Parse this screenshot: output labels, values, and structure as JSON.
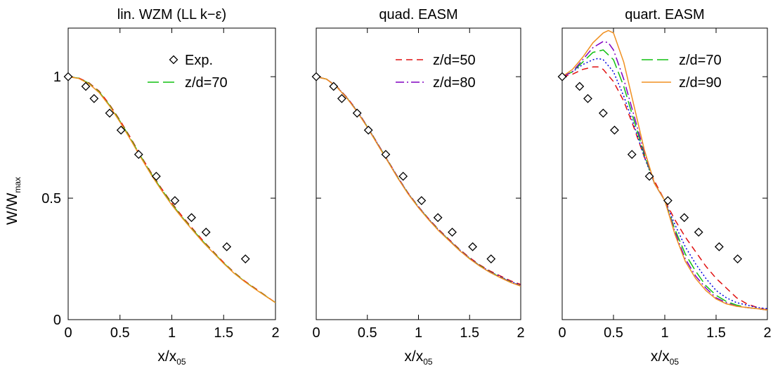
{
  "ylabel_main": "W/W",
  "ylabel_sub": "max",
  "xlabel_main": "x/x",
  "xlabel_sub": "05",
  "colors": {
    "exp": "#000000",
    "z50": "#e01010",
    "z60": "#0000e0",
    "z70": "#10c010",
    "z80": "#8000c0",
    "z90": "#f09020"
  },
  "chart_data": [
    {
      "type": "line",
      "title": "lin. WZM (LL k−ε)",
      "x_ticks": [
        "0",
        "0.5",
        "1",
        "1.5",
        "2"
      ],
      "y_ticks": [
        "0",
        "0.5",
        "1"
      ],
      "xlim": [
        0,
        2
      ],
      "ylim": [
        0,
        1.2
      ],
      "legend": [
        {
          "label": "Exp.",
          "series": "exp"
        },
        {
          "label": "z/d=70",
          "series": "z70"
        }
      ],
      "experiment": {
        "x": [
          0.0,
          0.17,
          0.25,
          0.4,
          0.51,
          0.68,
          0.85,
          1.03,
          1.19,
          1.33,
          1.53,
          1.71
        ],
        "y": [
          1.0,
          0.96,
          0.91,
          0.85,
          0.78,
          0.68,
          0.59,
          0.49,
          0.42,
          0.36,
          0.3,
          0.25
        ]
      },
      "series": [
        {
          "key": "z50",
          "dash": "dash",
          "x": [
            0,
            0.1,
            0.2,
            0.3,
            0.4,
            0.5,
            0.6,
            0.7,
            0.8,
            0.9,
            1.0,
            1.1,
            1.2,
            1.3,
            1.4,
            1.5,
            1.6,
            1.7,
            1.8,
            1.9,
            2.0
          ],
          "y": [
            1.0,
            0.995,
            0.975,
            0.94,
            0.885,
            0.82,
            0.75,
            0.675,
            0.605,
            0.54,
            0.48,
            0.425,
            0.375,
            0.325,
            0.28,
            0.235,
            0.195,
            0.16,
            0.13,
            0.1,
            0.07
          ]
        },
        {
          "key": "z70",
          "dash": "longdash",
          "x": [
            0,
            0.1,
            0.2,
            0.3,
            0.4,
            0.5,
            0.6,
            0.7,
            0.8,
            0.9,
            1.0,
            1.1,
            1.2,
            1.3,
            1.4,
            1.5,
            1.6,
            1.7,
            1.8,
            1.9,
            2.0
          ],
          "y": [
            1.0,
            0.994,
            0.973,
            0.937,
            0.882,
            0.817,
            0.746,
            0.672,
            0.601,
            0.536,
            0.476,
            0.421,
            0.371,
            0.322,
            0.277,
            0.233,
            0.193,
            0.158,
            0.128,
            0.099,
            0.07
          ]
        },
        {
          "key": "z90",
          "dash": "solid",
          "x": [
            0,
            0.1,
            0.2,
            0.3,
            0.4,
            0.5,
            0.6,
            0.7,
            0.8,
            0.9,
            1.0,
            1.1,
            1.2,
            1.3,
            1.4,
            1.5,
            1.6,
            1.7,
            1.8,
            1.9,
            2.0
          ],
          "y": [
            1.0,
            0.993,
            0.971,
            0.934,
            0.879,
            0.813,
            0.742,
            0.668,
            0.597,
            0.532,
            0.472,
            0.418,
            0.368,
            0.319,
            0.275,
            0.231,
            0.191,
            0.157,
            0.127,
            0.098,
            0.07
          ]
        }
      ]
    },
    {
      "type": "line",
      "title": "quad. EASM",
      "x_ticks": [
        "0",
        "0.5",
        "1",
        "1.5",
        "2"
      ],
      "y_ticks": [
        "0",
        "0.5",
        "1"
      ],
      "xlim": [
        0,
        2
      ],
      "ylim": [
        0,
        1.2
      ],
      "legend": [
        {
          "label": "z/d=50",
          "series": "z50"
        },
        {
          "label": "z/d=80",
          "series": "z80"
        }
      ],
      "experiment": {
        "x": [
          0.0,
          0.17,
          0.25,
          0.4,
          0.51,
          0.68,
          0.85,
          1.03,
          1.19,
          1.33,
          1.53,
          1.71
        ],
        "y": [
          1.0,
          0.96,
          0.91,
          0.85,
          0.78,
          0.68,
          0.59,
          0.49,
          0.42,
          0.36,
          0.3,
          0.25
        ]
      },
      "series": [
        {
          "key": "z50",
          "dash": "dash",
          "x": [
            0,
            0.1,
            0.2,
            0.3,
            0.4,
            0.5,
            0.6,
            0.7,
            0.8,
            0.9,
            1.0,
            1.1,
            1.2,
            1.3,
            1.4,
            1.5,
            1.6,
            1.7,
            1.8,
            1.9,
            2.0
          ],
          "y": [
            1.0,
            0.99,
            0.96,
            0.915,
            0.86,
            0.795,
            0.725,
            0.655,
            0.585,
            0.52,
            0.465,
            0.415,
            0.37,
            0.33,
            0.29,
            0.255,
            0.225,
            0.2,
            0.18,
            0.16,
            0.145
          ]
        },
        {
          "key": "z60",
          "dash": "dot",
          "x": [
            0,
            0.1,
            0.2,
            0.3,
            0.4,
            0.5,
            0.6,
            0.7,
            0.8,
            0.9,
            1.0,
            1.1,
            1.2,
            1.3,
            1.4,
            1.5,
            1.6,
            1.7,
            1.8,
            1.9,
            2.0
          ],
          "y": [
            1.0,
            0.99,
            0.959,
            0.914,
            0.859,
            0.794,
            0.724,
            0.654,
            0.584,
            0.519,
            0.464,
            0.414,
            0.368,
            0.328,
            0.288,
            0.253,
            0.223,
            0.197,
            0.177,
            0.157,
            0.142
          ]
        },
        {
          "key": "z70",
          "dash": "longdash",
          "x": [
            0,
            0.1,
            0.2,
            0.3,
            0.4,
            0.5,
            0.6,
            0.7,
            0.8,
            0.9,
            1.0,
            1.1,
            1.2,
            1.3,
            1.4,
            1.5,
            1.6,
            1.7,
            1.8,
            1.9,
            2.0
          ],
          "y": [
            1.0,
            0.99,
            0.958,
            0.913,
            0.858,
            0.793,
            0.723,
            0.653,
            0.583,
            0.518,
            0.463,
            0.413,
            0.367,
            0.327,
            0.287,
            0.252,
            0.222,
            0.196,
            0.175,
            0.155,
            0.14
          ]
        },
        {
          "key": "z80",
          "dash": "dashdot",
          "x": [
            0,
            0.1,
            0.2,
            0.3,
            0.4,
            0.5,
            0.6,
            0.7,
            0.8,
            0.9,
            1.0,
            1.1,
            1.2,
            1.3,
            1.4,
            1.5,
            1.6,
            1.7,
            1.8,
            1.9,
            2.0
          ],
          "y": [
            1.0,
            0.99,
            0.958,
            0.912,
            0.857,
            0.792,
            0.722,
            0.652,
            0.582,
            0.517,
            0.462,
            0.412,
            0.366,
            0.326,
            0.286,
            0.251,
            0.221,
            0.195,
            0.174,
            0.154,
            0.139
          ]
        },
        {
          "key": "z90",
          "dash": "solid",
          "x": [
            0,
            0.1,
            0.2,
            0.3,
            0.4,
            0.5,
            0.6,
            0.7,
            0.8,
            0.9,
            1.0,
            1.1,
            1.2,
            1.3,
            1.4,
            1.5,
            1.6,
            1.7,
            1.8,
            1.9,
            2.0
          ],
          "y": [
            1.0,
            0.99,
            0.958,
            0.912,
            0.856,
            0.791,
            0.721,
            0.651,
            0.581,
            0.516,
            0.461,
            0.411,
            0.365,
            0.325,
            0.285,
            0.25,
            0.22,
            0.194,
            0.173,
            0.153,
            0.138
          ]
        }
      ]
    },
    {
      "type": "line",
      "title": "quart. EASM",
      "x_ticks": [
        "0",
        "0.5",
        "1",
        "1.5",
        "2"
      ],
      "y_ticks": [
        "0",
        "0.5",
        "1"
      ],
      "xlim": [
        0,
        2
      ],
      "ylim": [
        0,
        1.2
      ],
      "legend": [
        {
          "label": "z/d=70",
          "series": "z70"
        },
        {
          "label": "z/d=90",
          "series": "z90"
        }
      ],
      "experiment": {
        "x": [
          0.0,
          0.17,
          0.25,
          0.4,
          0.51,
          0.68,
          0.85,
          1.03,
          1.19,
          1.33,
          1.53,
          1.71
        ],
        "y": [
          1.0,
          0.96,
          0.91,
          0.85,
          0.78,
          0.68,
          0.59,
          0.49,
          0.42,
          0.36,
          0.3,
          0.25
        ]
      },
      "series": [
        {
          "key": "z50",
          "dash": "dash",
          "x": [
            0,
            0.1,
            0.2,
            0.3,
            0.35,
            0.4,
            0.5,
            0.6,
            0.7,
            0.8,
            0.9,
            1.0,
            1.1,
            1.2,
            1.3,
            1.4,
            1.5,
            1.6,
            1.7,
            1.8,
            1.9,
            2.0
          ],
          "y": [
            1.0,
            1.01,
            1.03,
            1.04,
            1.04,
            1.03,
            0.98,
            0.9,
            0.79,
            0.67,
            0.57,
            0.49,
            0.41,
            0.34,
            0.28,
            0.22,
            0.17,
            0.13,
            0.09,
            0.065,
            0.05,
            0.04
          ]
        },
        {
          "key": "z60",
          "dash": "dot",
          "x": [
            0,
            0.1,
            0.2,
            0.3,
            0.35,
            0.4,
            0.5,
            0.6,
            0.7,
            0.8,
            0.9,
            1.0,
            1.1,
            1.2,
            1.3,
            1.4,
            1.5,
            1.6,
            1.7,
            1.8,
            1.9,
            2.0
          ],
          "y": [
            1.0,
            1.02,
            1.05,
            1.07,
            1.075,
            1.07,
            1.02,
            0.92,
            0.8,
            0.67,
            0.56,
            0.49,
            0.39,
            0.3,
            0.23,
            0.17,
            0.12,
            0.09,
            0.07,
            0.06,
            0.05,
            0.045
          ]
        },
        {
          "key": "z70",
          "dash": "longdash",
          "x": [
            0,
            0.1,
            0.2,
            0.3,
            0.4,
            0.5,
            0.6,
            0.7,
            0.8,
            0.9,
            1.0,
            1.1,
            1.2,
            1.3,
            1.4,
            1.5,
            1.6,
            1.7,
            1.8,
            1.9,
            2.0
          ],
          "y": [
            1.0,
            1.02,
            1.06,
            1.1,
            1.11,
            1.07,
            0.96,
            0.82,
            0.68,
            0.56,
            0.49,
            0.37,
            0.27,
            0.2,
            0.14,
            0.1,
            0.075,
            0.06,
            0.05,
            0.045,
            0.04
          ]
        },
        {
          "key": "z80",
          "dash": "dashdot",
          "x": [
            0,
            0.1,
            0.2,
            0.3,
            0.4,
            0.45,
            0.5,
            0.6,
            0.7,
            0.8,
            0.9,
            1.0,
            1.1,
            1.2,
            1.3,
            1.4,
            1.5,
            1.6,
            1.7,
            1.8,
            1.9,
            2.0
          ],
          "y": [
            1.0,
            1.02,
            1.07,
            1.12,
            1.145,
            1.14,
            1.11,
            0.99,
            0.84,
            0.69,
            0.56,
            0.49,
            0.36,
            0.25,
            0.18,
            0.13,
            0.09,
            0.07,
            0.055,
            0.05,
            0.045,
            0.04
          ]
        },
        {
          "key": "z90",
          "dash": "solid",
          "x": [
            0,
            0.1,
            0.2,
            0.3,
            0.4,
            0.45,
            0.5,
            0.6,
            0.7,
            0.8,
            0.9,
            1.0,
            1.1,
            1.2,
            1.3,
            1.4,
            1.5,
            1.6,
            1.7,
            1.8,
            1.9,
            2.0
          ],
          "y": [
            1.0,
            1.03,
            1.08,
            1.14,
            1.18,
            1.19,
            1.18,
            1.06,
            0.88,
            0.7,
            0.56,
            0.49,
            0.35,
            0.24,
            0.17,
            0.12,
            0.085,
            0.065,
            0.055,
            0.05,
            0.045,
            0.04
          ]
        }
      ]
    }
  ]
}
